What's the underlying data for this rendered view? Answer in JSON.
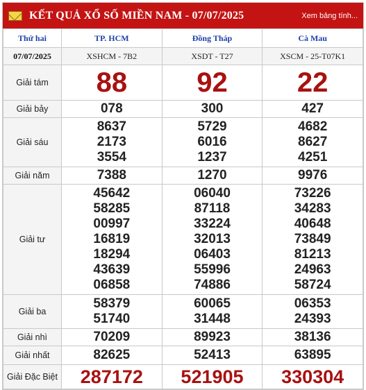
{
  "header": {
    "title": "KẾT QUẢ XỔ SỐ MIỀN NAM - 07/07/2025",
    "more_link": "Xem bảng tính...",
    "mail_icon": "envelope-icon"
  },
  "columns": {
    "day": "Thứ hai",
    "provinces": [
      "TP. HCM",
      "Đồng Tháp",
      "Cà Mau"
    ]
  },
  "codes": {
    "date": "07/07/2025",
    "values": [
      "XSHCM - 7B2",
      "XSDT - T27",
      "XSCM - 25-T07K1"
    ]
  },
  "prizes": [
    {
      "label": "Giải tám",
      "values": [
        [
          "88"
        ],
        [
          "92"
        ],
        [
          "22"
        ]
      ]
    },
    {
      "label": "Giải bảy",
      "values": [
        [
          "078"
        ],
        [
          "300"
        ],
        [
          "427"
        ]
      ]
    },
    {
      "label": "Giải sáu",
      "values": [
        [
          "8637",
          "2173",
          "3554"
        ],
        [
          "5729",
          "6016",
          "1237"
        ],
        [
          "4682",
          "8627",
          "4251"
        ]
      ]
    },
    {
      "label": "Giải năm",
      "values": [
        [
          "7388"
        ],
        [
          "1270"
        ],
        [
          "9976"
        ]
      ]
    },
    {
      "label": "Giải tư",
      "values": [
        [
          "45642",
          "58285",
          "00997",
          "16819",
          "18294",
          "43639",
          "06858"
        ],
        [
          "06040",
          "87118",
          "33224",
          "32013",
          "06403",
          "55996",
          "74886"
        ],
        [
          "73226",
          "34283",
          "40648",
          "73849",
          "81213",
          "24963",
          "58724"
        ]
      ]
    },
    {
      "label": "Giải ba",
      "values": [
        [
          "58379",
          "51740"
        ],
        [
          "60065",
          "31448"
        ],
        [
          "06353",
          "24393"
        ]
      ]
    },
    {
      "label": "Giải nhì",
      "values": [
        [
          "70209"
        ],
        [
          "89923"
        ],
        [
          "38136"
        ]
      ]
    },
    {
      "label": "Giải nhất",
      "values": [
        [
          "82625"
        ],
        [
          "52413"
        ],
        [
          "63895"
        ]
      ]
    },
    {
      "label": "Giải Đặc Biệt",
      "values": [
        [
          "287172"
        ],
        [
          "521905"
        ],
        [
          "330304"
        ]
      ]
    }
  ]
}
